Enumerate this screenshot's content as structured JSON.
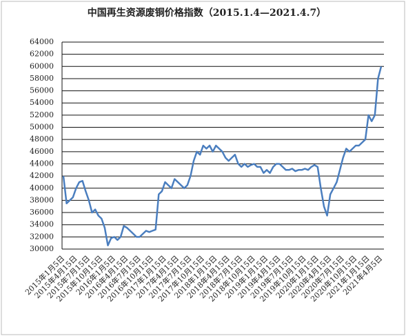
{
  "chart_data": {
    "type": "line",
    "title": "中国再生资源废铜价格指数（2015.1.4—2021.4.7）",
    "categories": [
      "2015年1月5日",
      null,
      null,
      null,
      "2015年4月15日",
      null,
      null,
      null,
      "2015年7月15日",
      null,
      null,
      null,
      "2015年10月15日",
      null,
      null,
      null,
      "2016年1月5日",
      null,
      null,
      null,
      "2016年4月15日",
      null,
      null,
      null,
      "2016年7月15日",
      null,
      null,
      null,
      "2016年10月15日",
      null,
      null,
      null,
      "2017年1月15日",
      null,
      null,
      null,
      "2017年4月15日",
      null,
      null,
      null,
      "2017年7月15日",
      null,
      null,
      null,
      "2017年10月15日",
      null,
      null,
      null,
      "2018年1月15日",
      null,
      null,
      null,
      "2018年4月15日",
      null,
      null,
      null,
      "2018年7月15日",
      null,
      null,
      null,
      "2018年10月15日",
      null,
      null,
      null,
      "2019年1月15日",
      null,
      null,
      null,
      "2019年4月15日",
      null,
      null,
      null,
      "2019年7月15日",
      null,
      null,
      null,
      "2019年10月15日",
      null,
      null,
      null,
      "2020年1月15日",
      null,
      null,
      null,
      "2020年4月15日",
      null,
      null,
      null,
      "2020年7月15日",
      null,
      null,
      null,
      "2020年10月15日",
      null,
      null,
      null,
      "2021年1月15日",
      null,
      null,
      null,
      "2021年4月5日"
    ],
    "values": [
      42000,
      37500,
      38000,
      38500,
      40000,
      41000,
      41200,
      39500,
      38000,
      36000,
      36500,
      35500,
      35000,
      33500,
      30600,
      31800,
      32000,
      31500,
      32000,
      33800,
      33500,
      33000,
      32500,
      32000,
      32000,
      32500,
      33000,
      32800,
      33000,
      33200,
      39000,
      39500,
      41000,
      40500,
      40000,
      41500,
      41000,
      40500,
      40000,
      40500,
      42000,
      44500,
      46000,
      45500,
      47000,
      46500,
      47000,
      46000,
      47000,
      46500,
      46000,
      45000,
      44500,
      45000,
      45500,
      44000,
      43500,
      44000,
      43500,
      43800,
      44000,
      43500,
      43500,
      42500,
      43000,
      42500,
      43500,
      44000,
      44000,
      43500,
      43000,
      43000,
      43200,
      42800,
      43000,
      43000,
      43200,
      43000,
      43500,
      43800,
      43500,
      40000,
      37000,
      35500,
      39000,
      40000,
      41000,
      43000,
      45000,
      46500,
      46000,
      46500,
      47000,
      47000,
      47500,
      48000,
      52000,
      51000,
      52000,
      58000,
      60000
    ],
    "color": "#4a7ebf",
    "ylim": [
      30000,
      64000
    ],
    "yticks": [
      30000,
      32000,
      34000,
      36000,
      38000,
      40000,
      42000,
      44000,
      46000,
      48000,
      50000,
      52000,
      54000,
      56000,
      58000,
      60000,
      62000,
      64000
    ],
    "grid": true
  }
}
